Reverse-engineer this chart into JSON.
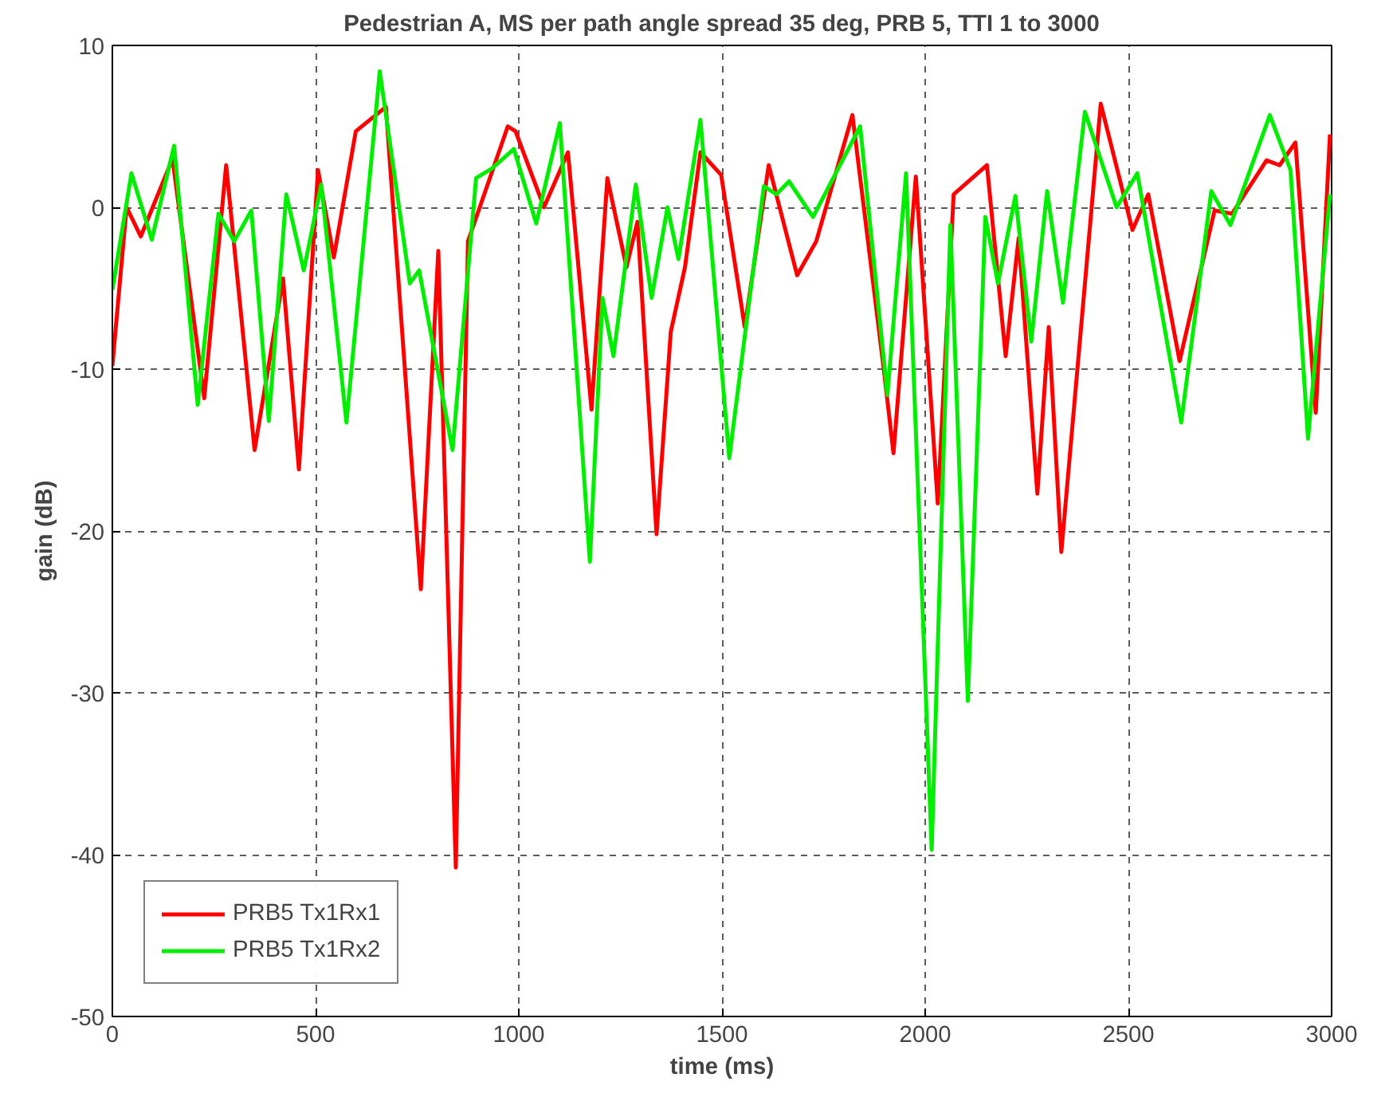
{
  "chart_data": {
    "type": "line",
    "title": "Pedestrian A, MS per path angle spread 35 deg, PRB 5, TTI 1 to 3000",
    "xlabel": "time (ms)",
    "ylabel": "gain (dB)",
    "xlim": [
      0,
      3000
    ],
    "ylim": [
      -50,
      10
    ],
    "xticks": [
      0,
      500,
      1000,
      1500,
      2000,
      2500,
      3000
    ],
    "yticks": [
      -50,
      -40,
      -30,
      -20,
      -10,
      0,
      10
    ],
    "grid": true,
    "legend": "bottom left",
    "line_style": "solid",
    "series": [
      {
        "name": "PRB5 Tx1Rx1",
        "color": "#ff0000",
        "x": [
          0,
          35,
          70,
          148,
          226,
          280,
          350,
          420,
          459,
          506,
          545,
          599,
          673,
          759,
          802,
          845,
          875,
          973,
          992,
          1062,
          1121,
          1179,
          1218,
          1265,
          1292,
          1339,
          1374,
          1409,
          1447,
          1498,
          1556,
          1615,
          1685,
          1732,
          1821,
          1899,
          1922,
          1977,
          2031,
          2070,
          2152,
          2198,
          2230,
          2276,
          2304,
          2335,
          2432,
          2510,
          2549,
          2626,
          2712,
          2755,
          2840,
          2872,
          2911,
          2961,
          2996
        ],
        "values": [
          -9.8,
          0,
          -1.8,
          3.0,
          -11.8,
          2.6,
          -15,
          -4.4,
          -16.2,
          2.3,
          -3.1,
          4.7,
          6.2,
          -23.6,
          -2.7,
          -40.8,
          -2.1,
          5.0,
          4.7,
          0,
          3.4,
          -12.5,
          1.8,
          -3.7,
          -0.9,
          -20.2,
          -7.7,
          -3.7,
          3.4,
          2.0,
          -7.4,
          2.6,
          -4.2,
          -2.1,
          5.7,
          -10.2,
          -15.2,
          1.9,
          -18.3,
          0.8,
          2.6,
          -9.2,
          -1.9,
          -17.7,
          -7.4,
          -21.3,
          6.4,
          -1.4,
          0.8,
          -9.5,
          -0.2,
          -0.4,
          2.9,
          2.6,
          4.0,
          -12.7,
          4.5
        ]
      },
      {
        "name": "PRB5 Tx1Rx2",
        "color": "#00ee00",
        "x": [
          0,
          47,
          97,
          152,
          210,
          261,
          300,
          342,
          385,
          428,
          471,
          514,
          576,
          658,
          732,
          755,
          837,
          895,
          934,
          988,
          1043,
          1101,
          1175,
          1206,
          1233,
          1288,
          1327,
          1366,
          1393,
          1447,
          1518,
          1603,
          1634,
          1665,
          1724,
          1840,
          1907,
          1953,
          2016,
          2062,
          2105,
          2148,
          2179,
          2222,
          2261,
          2300,
          2339,
          2393,
          2471,
          2522,
          2630,
          2704,
          2751,
          2848,
          2899,
          2942,
          2996
        ],
        "values": [
          -5.1,
          2.1,
          -2.0,
          3.8,
          -12.2,
          -0.4,
          -2.1,
          -0.2,
          -13.2,
          0.8,
          -3.9,
          1.4,
          -13.3,
          8.4,
          -4.7,
          -3.9,
          -15,
          1.8,
          2.4,
          3.6,
          -1.0,
          5.2,
          -21.9,
          -5.6,
          -9.2,
          1.4,
          -5.6,
          0,
          -3.2,
          5.4,
          -15.5,
          1.3,
          0.8,
          1.6,
          -0.6,
          5.0,
          -11.6,
          2.1,
          -39.7,
          -1.1,
          -30.5,
          -0.6,
          -4.7,
          0.7,
          -8.3,
          1.0,
          -5.9,
          5.9,
          0,
          2.1,
          -13.3,
          1.0,
          -1.1,
          5.7,
          2.3,
          -14.3,
          0.8
        ]
      }
    ]
  }
}
